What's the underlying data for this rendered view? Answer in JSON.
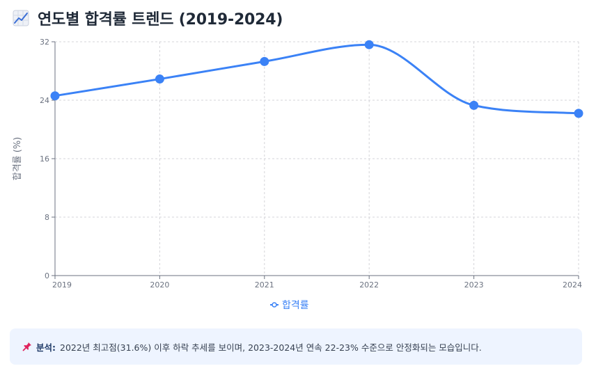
{
  "title": "연도별 합격률 트렌드 (2019-2024)",
  "title_icon": "chart-increasing-icon",
  "chart_data": {
    "type": "line",
    "title": "",
    "x": [
      "2019",
      "2020",
      "2021",
      "2022",
      "2023",
      "2024"
    ],
    "series": [
      {
        "name": "합격률",
        "values": [
          24.6,
          26.9,
          29.3,
          31.6,
          23.3,
          22.2
        ],
        "color": "#3b82f6"
      }
    ],
    "xlabel": "",
    "ylabel": "합격률 (%)",
    "ylim": [
      0,
      32
    ],
    "yticks": [
      "0",
      "8",
      "16",
      "24",
      "32"
    ],
    "grid": true,
    "legend": "bottom-center"
  },
  "note": {
    "icon": "pushpin-icon",
    "label": "분석:",
    "text": "2022년 최고점(31.6%) 이후 하락 추세를 보이며, 2023-2024년 연속 22-23% 수준으로 안정화되는 모습입니다."
  }
}
